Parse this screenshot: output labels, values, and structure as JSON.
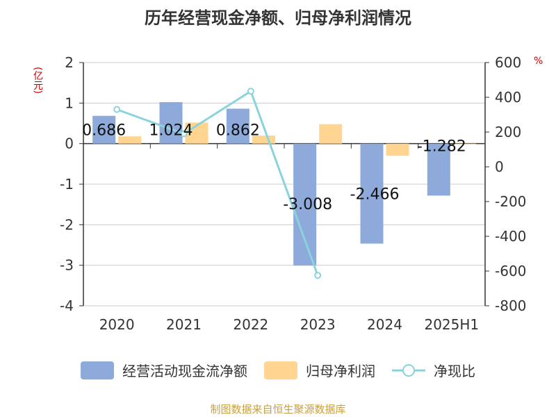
{
  "title": "历年经营现金净额、归母净利润情况",
  "source": "制图数据来自恒生聚源数据库",
  "colors": {
    "bar1": "#8eaadb",
    "bar2": "#ffd591",
    "line": "#8ad3dc",
    "unit_text": "#cc0000",
    "source_text": "#c8a040",
    "axis": "#333333",
    "grid": "#cccccc"
  },
  "chart_data": {
    "type": "bar",
    "categories": [
      "2020",
      "2021",
      "2022",
      "2023",
      "2024",
      "2025H1"
    ],
    "series": [
      {
        "name": "经营活动现金流净额",
        "axis": "left",
        "type": "bar",
        "values": [
          0.686,
          1.024,
          0.862,
          -3.008,
          -2.466,
          -1.282
        ],
        "labels": [
          "0.686",
          "1.024",
          "0.862",
          "-3.008",
          "-2.466",
          "-1.282"
        ]
      },
      {
        "name": "归母净利润",
        "axis": "left",
        "type": "bar",
        "values": [
          0.18,
          0.52,
          0.2,
          0.48,
          -0.3,
          -0.02
        ]
      },
      {
        "name": "净现比",
        "axis": "right",
        "type": "line",
        "values": [
          330,
          190,
          435,
          -625,
          null,
          null
        ]
      }
    ],
    "y_left": {
      "unit": "(亿元)",
      "min": -4,
      "max": 2,
      "ticks": [
        2,
        1,
        0,
        -1,
        -2,
        -3,
        -4
      ]
    },
    "y_right": {
      "unit": "%",
      "min": -800,
      "max": 600,
      "ticks": [
        600,
        400,
        200,
        0,
        -200,
        -400,
        -600,
        -800
      ]
    },
    "grid": true,
    "legend_position": "bottom"
  }
}
